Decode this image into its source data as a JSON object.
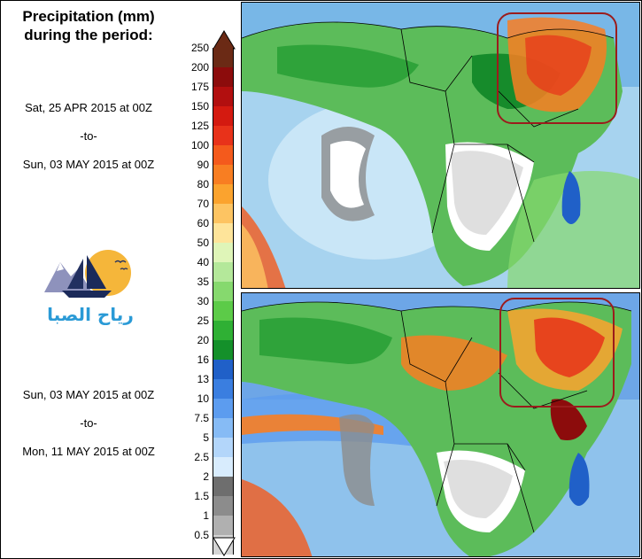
{
  "title_line1": "Precipitation (mm)",
  "title_line2": "during the period:",
  "period1": {
    "start": "Sat, 25 APR 2015 at 00Z",
    "sep": "-to-",
    "end": "Sun, 03 MAY 2015 at 00Z"
  },
  "period2": {
    "start": "Sun, 03 MAY 2015 at 00Z",
    "sep": "-to-",
    "end": "Mon, 11 MAY 2015 at 00Z"
  },
  "logo_text": "رياح الصبا",
  "legend": {
    "labels": [
      "250",
      "200",
      "175",
      "150",
      "125",
      "100",
      "90",
      "80",
      "70",
      "60",
      "50",
      "40",
      "35",
      "30",
      "25",
      "20",
      "16",
      "13",
      "10",
      "7.5",
      "5",
      "2.5",
      "2",
      "1.5",
      "1",
      "0.5"
    ],
    "colors": [
      "#6b2a15",
      "#8c0c0c",
      "#b20f0f",
      "#d41a10",
      "#e8321a",
      "#f45a1c",
      "#f87e22",
      "#fba32e",
      "#fdc462",
      "#fee49a",
      "#dff5b8",
      "#b4e89a",
      "#86d96e",
      "#5ccb48",
      "#2fb034",
      "#14902a",
      "#2060c8",
      "#3a7ee0",
      "#5c9cef",
      "#86bbf5",
      "#b3d6fa",
      "#d8ecfd",
      "#6e6e6e",
      "#8c8c8c",
      "#b0b0b0",
      "#d4d4d4"
    ]
  },
  "palette": {
    "ocean_dry": "#b4dcf0",
    "ocean_wet": "#8fc2ec",
    "highlight": "#9b1c1c"
  }
}
